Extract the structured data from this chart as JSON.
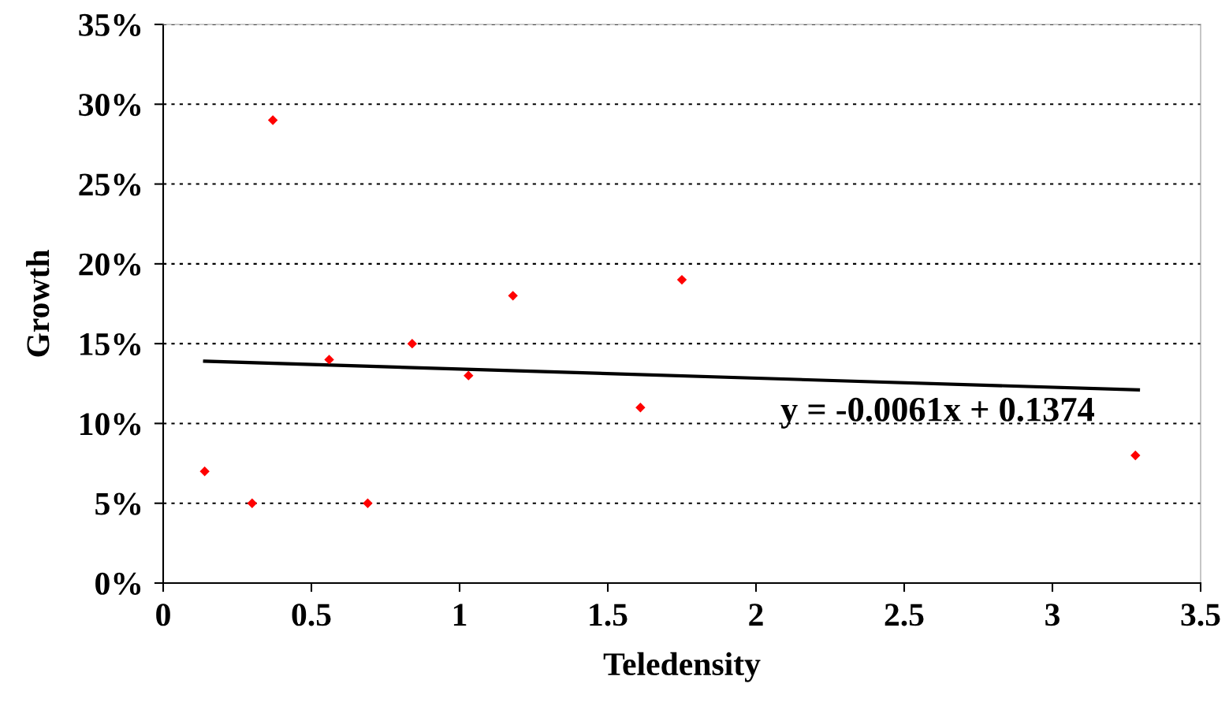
{
  "chart_data": {
    "type": "scatter",
    "xlabel": "Teledensity",
    "ylabel": "Growth",
    "xlim": [
      0,
      3.5
    ],
    "xticks": [
      0,
      0.5,
      1,
      1.5,
      2,
      2.5,
      3,
      3.5
    ],
    "ylim": [
      0,
      0.35
    ],
    "yticks": [
      {
        "value": 0,
        "label": "0%"
      },
      {
        "value": 0.05,
        "label": "5%"
      },
      {
        "value": 0.1,
        "label": "10%"
      },
      {
        "value": 0.15,
        "label": "15%"
      },
      {
        "value": 0.2,
        "label": "20%"
      },
      {
        "value": 0.25,
        "label": "25%"
      },
      {
        "value": 0.3,
        "label": "30%"
      },
      {
        "value": 0.35,
        "label": "35%"
      }
    ],
    "grid": "y",
    "series": [
      {
        "marker": "diamond",
        "color": "#ff0000",
        "x": [
          0.14,
          0.3,
          0.37,
          0.56,
          0.69,
          0.84,
          1.03,
          1.18,
          1.61,
          1.75,
          3.28
        ],
        "values": [
          0.07,
          0.05,
          0.29,
          0.14,
          0.05,
          0.15,
          0.13,
          0.18,
          0.11,
          0.19,
          0.08
        ]
      },
      {
        "type": "line",
        "color": "#000000",
        "x": [
          0.14,
          3.29
        ],
        "values": [
          0.139,
          0.121
        ]
      }
    ],
    "annotations": [
      "y = -0.0061x + 0.1374"
    ]
  }
}
